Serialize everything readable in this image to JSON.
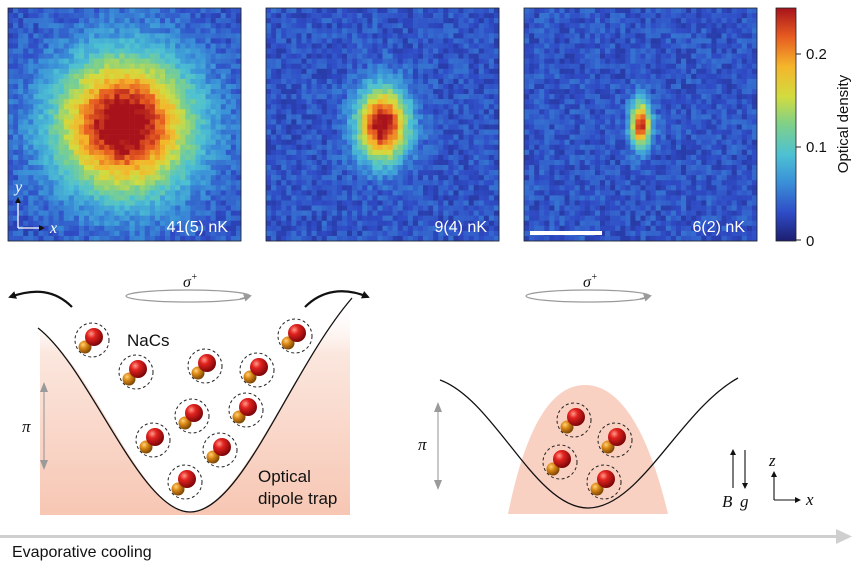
{
  "panels": [
    {
      "temperature": "41(5) nK",
      "cloud": {
        "spread": 0.3,
        "aspect": 1.0,
        "peak": 0.24
      }
    },
    {
      "temperature": "9(4) nK",
      "cloud": {
        "spread": 0.16,
        "aspect": 0.7,
        "peak": 0.23
      }
    },
    {
      "temperature": "6(2) nK",
      "cloud": {
        "spread": 0.1,
        "aspect": 0.45,
        "peak": 0.21
      }
    }
  ],
  "axes_inset": {
    "x": "x",
    "y": "y"
  },
  "colorbar": {
    "label": "Optical density",
    "ticks": [
      "0",
      "0.1",
      "0.2"
    ],
    "range": [
      0,
      0.25
    ],
    "colormap": [
      "#1c1e6e",
      "#2f4bc6",
      "#3a8fd8",
      "#4dc1d3",
      "#7ed08a",
      "#d2dc3f",
      "#f5b52b",
      "#e65a21",
      "#a8131b"
    ]
  },
  "diagram": {
    "sigma_label": "σ",
    "sigma_sup": "+",
    "molecule_label": "NaCs",
    "trap_label_line1": "Optical",
    "trap_label_line2": "dipole trap",
    "pi_label": "π",
    "B_label": "B",
    "g_label": "g",
    "z_label": "z",
    "x_label": "x",
    "arrow_label": "Evaporative cooling"
  },
  "colors": {
    "atom_red": "#d0151b",
    "atom_orange": "#d98316",
    "trap_fill": "#f6c7b6",
    "arrow_gray": "#c8c8c8",
    "text": "#111111"
  }
}
